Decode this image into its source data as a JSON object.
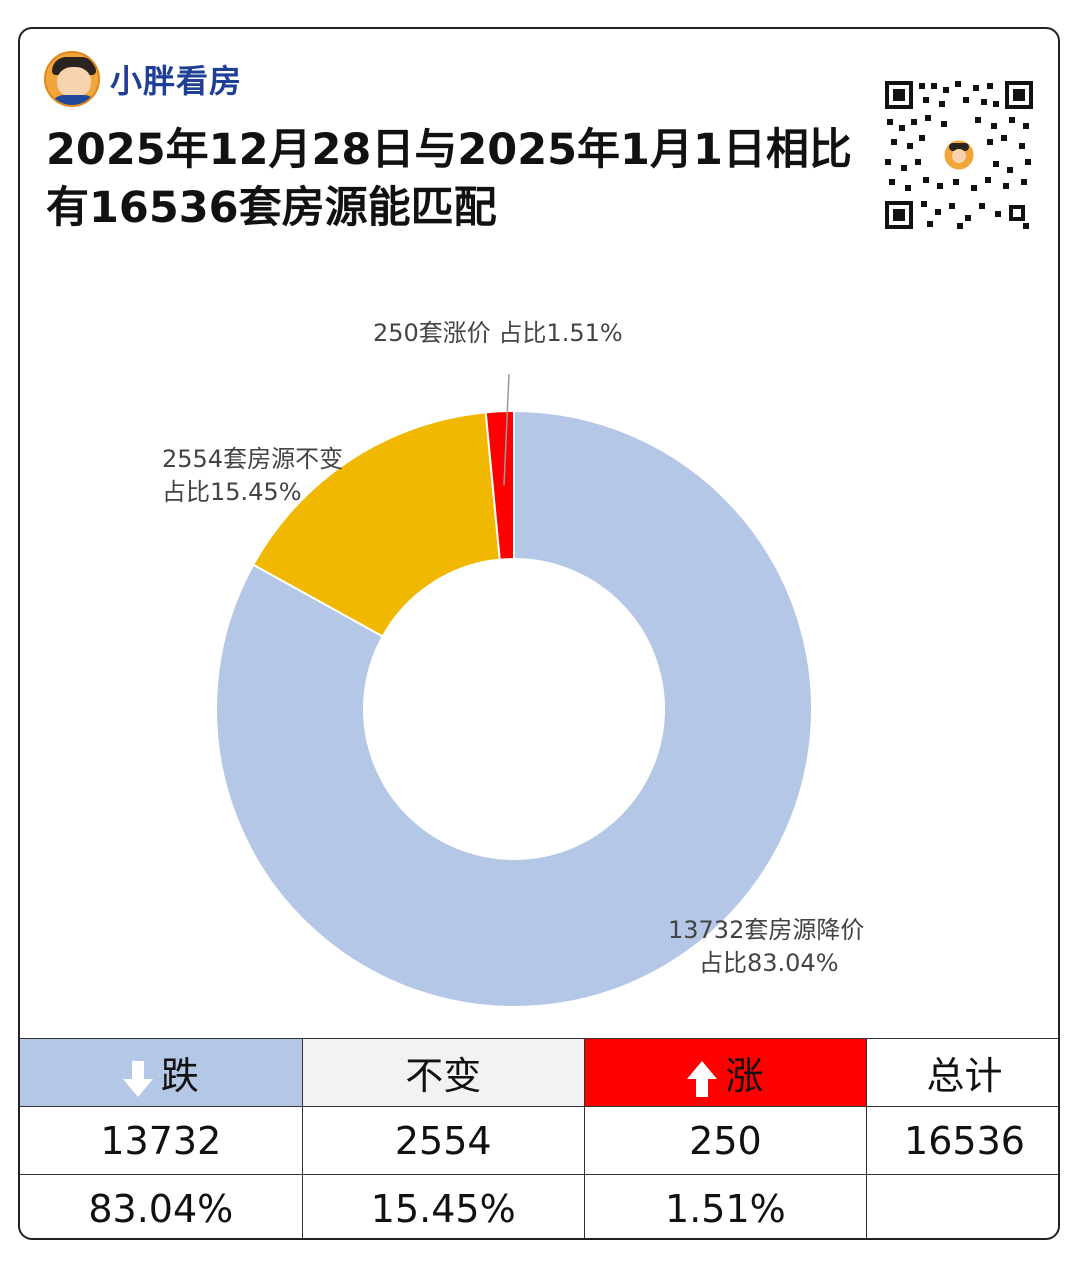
{
  "brand": {
    "name": "小胖看房"
  },
  "title": {
    "line1": "2025年12月28日与2025年1月1日相比",
    "line2": "有16536套房源能匹配"
  },
  "chart_data": {
    "type": "pie",
    "donut": true,
    "slices": [
      {
        "label_line1": "13732套房源降价",
        "label_line2": "占比83.04%",
        "value": 13732,
        "percent": 83.04,
        "color": "#b4c7e7"
      },
      {
        "label_line1": "2554套房源不变",
        "label_line2": "占比15.45%",
        "value": 2554,
        "percent": 15.45,
        "color": "#f0b800"
      },
      {
        "label_line1": "250套涨价 占比1.51%",
        "label_line2": "",
        "value": 250,
        "percent": 1.51,
        "color": "#ff0000"
      }
    ]
  },
  "table": {
    "headers": {
      "down": "跌",
      "flat": "不变",
      "up": "涨",
      "total": "总计"
    },
    "counts": {
      "down": "13732",
      "flat": "2554",
      "up": "250",
      "total": "16536"
    },
    "percents": {
      "down": "83.04%",
      "flat": "15.45%",
      "up": "1.51%",
      "total": ""
    }
  }
}
